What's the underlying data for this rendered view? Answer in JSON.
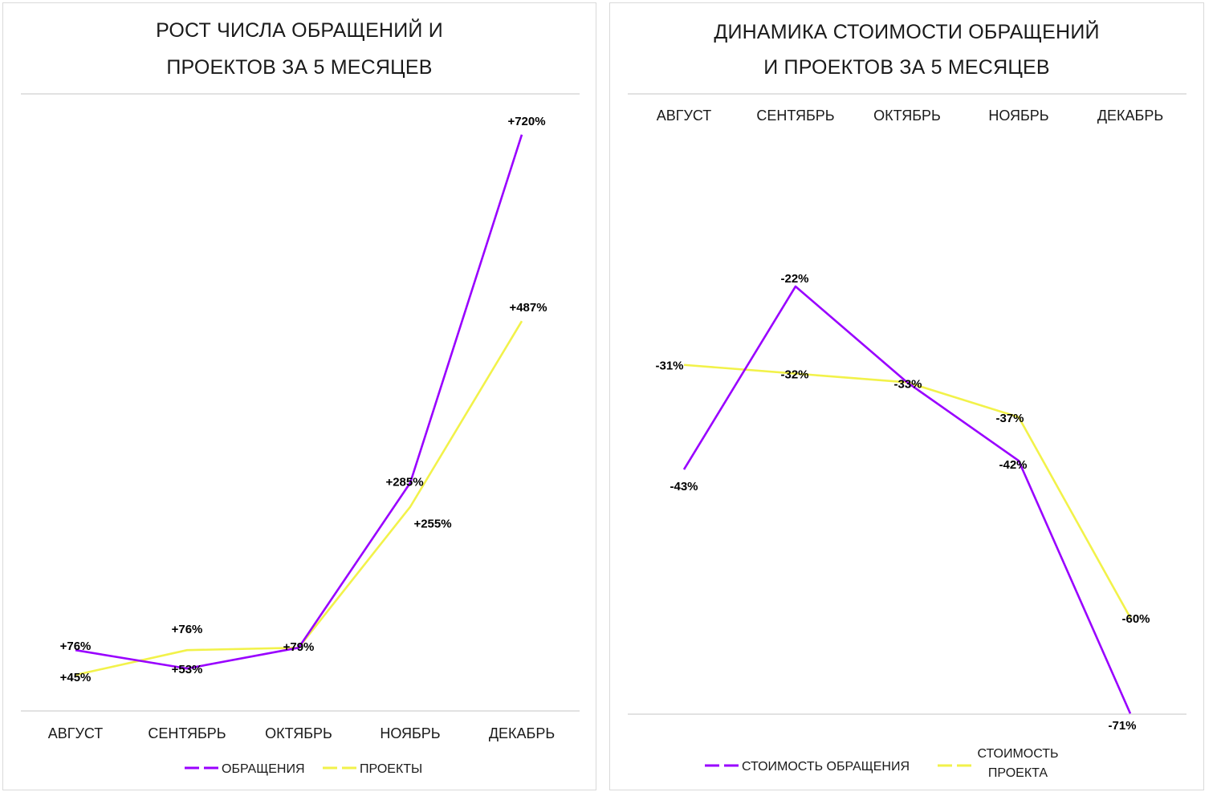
{
  "colors": {
    "purple": "#9900ff",
    "yellow": "#f2f24a",
    "axis": "#d9d9d9"
  },
  "chart_data": [
    {
      "type": "line",
      "title_lines": [
        "РОСТ ЧИСЛА  ОБРАЩЕНИЙ И",
        "ПРОЕКТОВ  ЗА 5 МЕСЯЦЕВ"
      ],
      "categories": [
        "АВГУСТ",
        "СЕНТЯБРЬ",
        "ОКТЯБРЬ",
        "НОЯБРЬ",
        "ДЕКАБРЬ"
      ],
      "category_axis_position": "bottom",
      "legend_position": "bottom",
      "ylim": [
        0,
        800
      ],
      "series": [
        {
          "name": "ОБРАЩЕНИЯ",
          "color": "#9900ff",
          "values": [
            76,
            53,
            79,
            285,
            720
          ],
          "labels": [
            "+76%",
            "+53%",
            "+79%",
            "+285%",
            "+720%"
          ]
        },
        {
          "name": "ПРОЕКТЫ",
          "color": "#f2f24a",
          "values": [
            45,
            76,
            79,
            255,
            487
          ],
          "labels": [
            "+45%",
            "+76%",
            "",
            "+255%",
            "+487%"
          ]
        }
      ]
    },
    {
      "type": "line",
      "title_lines": [
        "ДИНАМИКА СТОИМОСТИ ОБРАЩЕНИЙ",
        "И  ПРОЕКТОВ  ЗА 5 МЕСЯЦЕВ"
      ],
      "categories": [
        "АВГУСТ",
        "СЕНТЯБРЬ",
        "ОКТЯБРЬ",
        "НОЯБРЬ",
        "ДЕКАБРЬ"
      ],
      "category_axis_position": "top",
      "legend_position": "bottom",
      "ylim": [
        -80,
        0
      ],
      "series": [
        {
          "name": "СТОИМОСТЬ ОБРАЩЕНИЯ",
          "color": "#9900ff",
          "values": [
            -43,
            -22,
            -33,
            -42,
            -71
          ],
          "labels": [
            "-43%",
            "-22%",
            "-33%",
            "-42%",
            "-71%"
          ]
        },
        {
          "name": "СТОИМОСТЬ ПРОЕКТА",
          "color": "#f2f24a",
          "values": [
            -31,
            -32,
            -33,
            -37,
            -60
          ],
          "labels": [
            "-31%",
            "-32%",
            "",
            "-37%",
            "-60%"
          ]
        }
      ]
    }
  ]
}
